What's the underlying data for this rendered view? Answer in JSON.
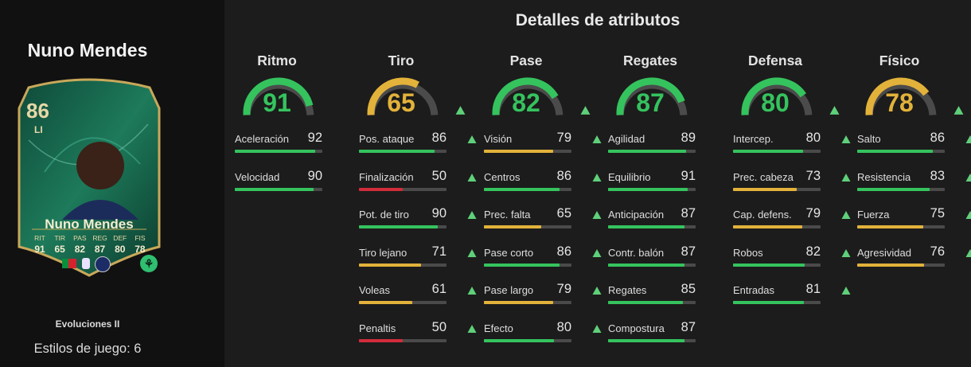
{
  "player": {
    "name": "Nuno Mendes",
    "card": {
      "rating": "86",
      "position": "LI",
      "name": "Nuno Mendes",
      "stats": [
        {
          "label": "RIT",
          "value": "91"
        },
        {
          "label": "TIR",
          "value": "65"
        },
        {
          "label": "PAS",
          "value": "82"
        },
        {
          "label": "REG",
          "value": "87"
        },
        {
          "label": "DEF",
          "value": "80"
        },
        {
          "label": "FIS",
          "value": "78"
        }
      ]
    },
    "evolution_title": "Evoluciones II",
    "playstyles": "Estilos de juego: 6"
  },
  "section_title": "Detalles de atributos",
  "colors": {
    "green": "#35c35e",
    "yellow": "#e2b23a",
    "red": "#d22c3a",
    "gauge_track": "#4b4b4b",
    "arrow": "#5fd07a"
  },
  "categories": [
    {
      "name": "Ritmo",
      "value": "91",
      "upgraded": false,
      "attributes": [
        {
          "label": "Aceleración",
          "value": "92",
          "upgraded": false
        },
        {
          "label": "Velocidad",
          "value": "90",
          "upgraded": false
        }
      ]
    },
    {
      "name": "Tiro",
      "value": "65",
      "upgraded": true,
      "attributes": [
        {
          "label": "Pos. ataque",
          "value": "86",
          "upgraded": true
        },
        {
          "label": "Finalización",
          "value": "50",
          "upgraded": true
        },
        {
          "label": "Pot. de tiro",
          "value": "90",
          "upgraded": true
        },
        {
          "label": "Tiro lejano",
          "value": "71",
          "upgraded": true
        },
        {
          "label": "Voleas",
          "value": "61",
          "upgraded": true
        },
        {
          "label": "Penaltis",
          "value": "50",
          "upgraded": true
        }
      ]
    },
    {
      "name": "Pase",
      "value": "82",
      "upgraded": true,
      "attributes": [
        {
          "label": "Visión",
          "value": "79",
          "upgraded": true
        },
        {
          "label": "Centros",
          "value": "86",
          "upgraded": true
        },
        {
          "label": "Prec. falta",
          "value": "65",
          "upgraded": true
        },
        {
          "label": "Pase corto",
          "value": "86",
          "upgraded": true
        },
        {
          "label": "Pase largo",
          "value": "79",
          "upgraded": true
        },
        {
          "label": "Efecto",
          "value": "80",
          "upgraded": true
        }
      ]
    },
    {
      "name": "Regates",
      "value": "87",
      "upgraded": false,
      "attributes": [
        {
          "label": "Agilidad",
          "value": "89",
          "upgraded": false
        },
        {
          "label": "Equilibrio",
          "value": "91",
          "upgraded": false
        },
        {
          "label": "Anticipación",
          "value": "87",
          "upgraded": false
        },
        {
          "label": "Contr. balón",
          "value": "87",
          "upgraded": false
        },
        {
          "label": "Regates",
          "value": "85",
          "upgraded": false
        },
        {
          "label": "Compostura",
          "value": "87",
          "upgraded": false
        }
      ]
    },
    {
      "name": "Defensa",
      "value": "80",
      "upgraded": true,
      "attributes": [
        {
          "label": "Intercep.",
          "value": "80",
          "upgraded": true
        },
        {
          "label": "Prec. cabeza",
          "value": "73",
          "upgraded": true
        },
        {
          "label": "Cap. defens.",
          "value": "79",
          "upgraded": true
        },
        {
          "label": "Robos",
          "value": "82",
          "upgraded": true
        },
        {
          "label": "Entradas",
          "value": "81",
          "upgraded": true
        }
      ]
    },
    {
      "name": "Físico",
      "value": "78",
      "upgraded": true,
      "attributes": [
        {
          "label": "Salto",
          "value": "86",
          "upgraded": true
        },
        {
          "label": "Resistencia",
          "value": "83",
          "upgraded": true
        },
        {
          "label": "Fuerza",
          "value": "75",
          "upgraded": true
        },
        {
          "label": "Agresividad",
          "value": "76",
          "upgraded": true
        }
      ]
    }
  ]
}
